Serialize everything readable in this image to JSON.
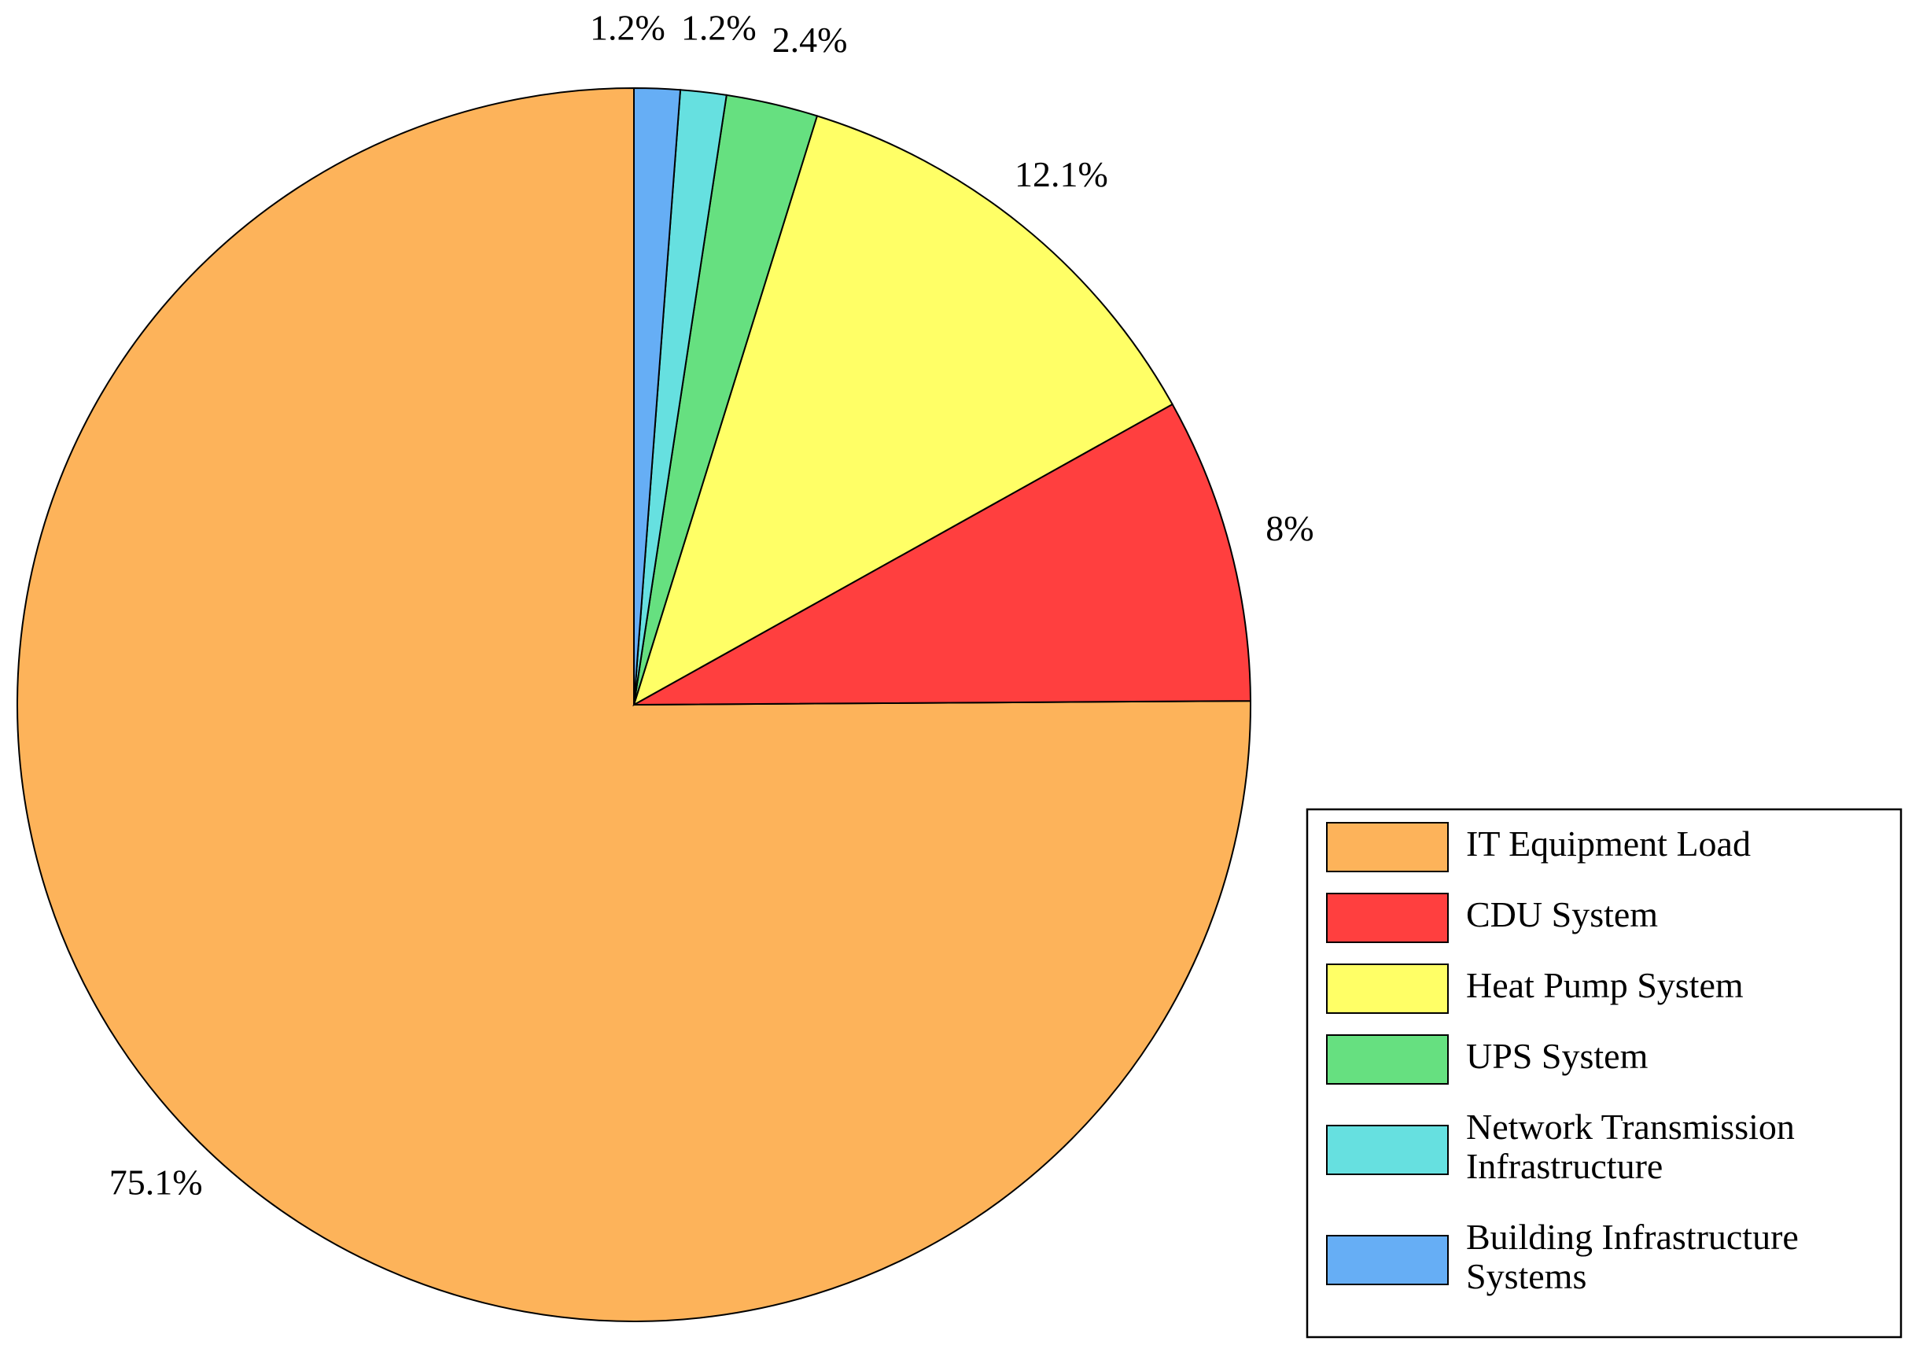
{
  "chart_data": {
    "type": "pie",
    "series": [
      {
        "name": "IT Equipment Load",
        "color": "#fdb35a",
        "values": [
          75.1
        ],
        "value_labels": [
          "75.1%"
        ]
      },
      {
        "name": "CDU System",
        "color": "#ff3f3f",
        "values": [
          8
        ],
        "value_labels": [
          "8%"
        ]
      },
      {
        "name": "Heat Pump System",
        "color": "#ffff66",
        "values": [
          12.1
        ],
        "value_labels": [
          "12.1%"
        ]
      },
      {
        "name": "UPS System",
        "color": "#66e080",
        "values": [
          2.4
        ],
        "value_labels": [
          "2.4%"
        ]
      },
      {
        "name": "Network Transmission Infrastructure",
        "color": "#66e0e0",
        "values": [
          1.2
        ],
        "value_labels": [
          "1.2%"
        ]
      },
      {
        "name": "Building Infrastructure Systems",
        "color": "#66aef5",
        "values": [
          1.2
        ],
        "value_labels": [
          "1.2%"
        ]
      }
    ],
    "legend": "lower right"
  }
}
